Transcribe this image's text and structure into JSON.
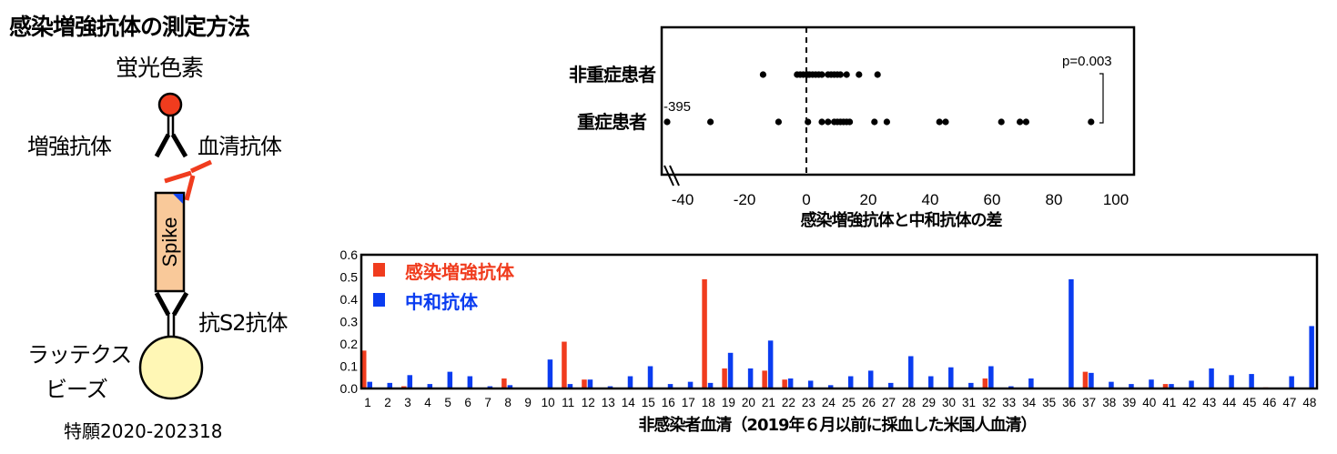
{
  "diagram": {
    "title": "感染増強抗体の測定方法",
    "fluorophore_label": "蛍光色素",
    "enhancing_antibody_label": "増強抗体",
    "serum_antibody_label": "血清抗体",
    "spike_label": "Spike",
    "anti_s2_label": "抗S2抗体",
    "latex_beads_label_line1": "ラッテクス",
    "latex_beads_label_line2": "ビーズ",
    "patent": "特願2020-202318",
    "colors": {
      "fluorophore": "#f03c1e",
      "serum_antibody": "#f03c1e",
      "spike_fill": "#f9c99a",
      "spike_corner": "#1346f0",
      "bead_fill": "#fff7b5"
    }
  },
  "chart_data": [
    {
      "type": "scatter",
      "title": "",
      "xlabel": "感染増強抗体と中和抗体の差",
      "ylabel": "",
      "xlim": [
        -47,
        100
      ],
      "xticks": [
        -40,
        -20,
        0,
        20,
        40,
        60,
        80,
        100
      ],
      "x_axis_break": true,
      "reference_line": {
        "x": 0,
        "style": "dashed"
      },
      "annotation_outlier": "-395",
      "p_value": "p=0.003",
      "categories": [
        "非重症患者",
        "重症患者"
      ],
      "series": [
        {
          "name": "非重症患者",
          "values": [
            -14,
            -3,
            -2,
            -1,
            0,
            0.5,
            1,
            2,
            3,
            4,
            5,
            7,
            8,
            9,
            10,
            11,
            13,
            17,
            23
          ]
        },
        {
          "name": "重症患者",
          "values": [
            -395,
            -31,
            -9,
            0.5,
            5,
            7,
            9,
            10,
            11,
            12,
            13,
            14,
            22,
            26,
            43,
            45,
            63,
            69,
            71,
            92
          ]
        }
      ],
      "grid": false
    },
    {
      "type": "bar",
      "title": "",
      "xlabel": "非感染者血清（2019年６月以前に採血した米国人血清）",
      "ylabel": "",
      "ylim": [
        0,
        0.6
      ],
      "yticks": [
        "0.0",
        "0.1",
        "0.2",
        "0.3",
        "0.4",
        "0.5",
        "0.6"
      ],
      "legend_position": "upper-left",
      "grid": false,
      "categories": [
        "1",
        "2",
        "3",
        "4",
        "5",
        "6",
        "7",
        "8",
        "9",
        "10",
        "11",
        "12",
        "13",
        "14",
        "15",
        "16",
        "17",
        "18",
        "19",
        "20",
        "21",
        "22",
        "23",
        "24",
        "25",
        "26",
        "27",
        "28",
        "29",
        "30",
        "31",
        "32",
        "33",
        "34",
        "35",
        "36",
        "37",
        "38",
        "39",
        "40",
        "41",
        "42",
        "43",
        "44",
        "45",
        "46",
        "47",
        "48"
      ],
      "series": [
        {
          "name": "感染増強抗体",
          "color": "#f03c1e",
          "values": [
            0.17,
            0,
            0.01,
            0,
            0,
            0,
            0,
            0.045,
            0.003,
            0.003,
            0.21,
            0.04,
            0,
            0.003,
            0.003,
            0,
            0,
            0.49,
            0.09,
            0.003,
            0.08,
            0.04,
            0,
            0,
            0,
            0,
            0,
            0,
            0,
            0.003,
            0.003,
            0.045,
            0,
            0,
            0,
            0.003,
            0.075,
            0,
            0,
            0,
            0.02,
            0,
            0,
            0,
            0,
            0.005,
            0,
            0
          ]
        },
        {
          "name": "中和抗体",
          "color": "#0a3cf0",
          "values": [
            0.03,
            0.025,
            0.06,
            0.02,
            0.075,
            0.055,
            0.01,
            0.015,
            0.003,
            0.13,
            0.02,
            0.04,
            0.01,
            0.055,
            0.1,
            0.02,
            0.03,
            0.025,
            0.16,
            0.09,
            0.215,
            0.045,
            0.035,
            0.015,
            0.055,
            0.08,
            0.025,
            0.145,
            0.055,
            0.095,
            0.025,
            0.1,
            0.01,
            0.045,
            0.003,
            0.49,
            0.07,
            0.03,
            0.02,
            0.04,
            0.02,
            0.035,
            0.09,
            0.06,
            0.065,
            0,
            0.055,
            0.28
          ]
        }
      ]
    }
  ]
}
